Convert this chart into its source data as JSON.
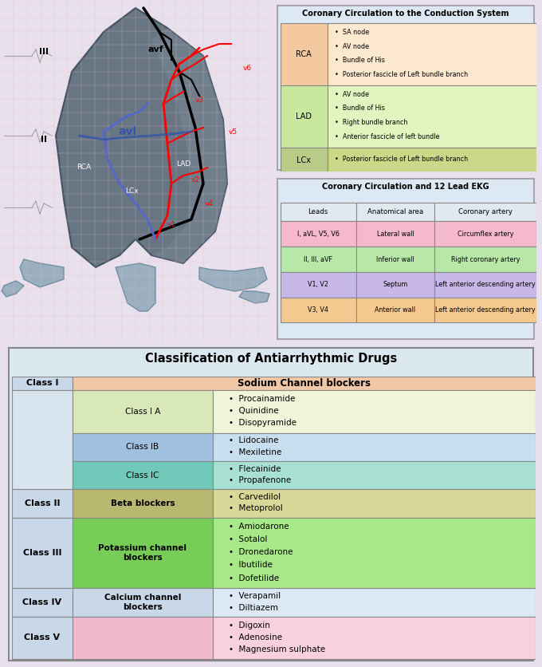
{
  "bg_color": "#f0e8f0",
  "top_bg": "#f5eef5",
  "coronary_conduction_title": "Coronary Circulation to the Conduction System",
  "coronary_conduction_rows": [
    {
      "artery": "RCA",
      "artery_bg": "#f5c9a0",
      "items_bg": "#fde8d0",
      "items": [
        "SA node",
        "AV node",
        "Bundle of His",
        "Posterior fascicle of Left bundle branch"
      ]
    },
    {
      "artery": "LAD",
      "artery_bg": "#c8e8a0",
      "items_bg": "#e0f5c0",
      "items": [
        "AV node",
        "Bundle of His",
        "Right bundle branch",
        "Anterior fascicle of left bundle"
      ]
    },
    {
      "artery": "LCx",
      "artery_bg": "#b8cc88",
      "items_bg": "#ccd888",
      "items": [
        "Posterior fascicle of Left bundle branch"
      ]
    }
  ],
  "ekg_title": "Coronary Circulation and 12 Lead EKG",
  "ekg_headers": [
    "Leads",
    "Anatomical area",
    "Coronary artery"
  ],
  "ekg_header_bg": "#e0e8f0",
  "ekg_rows": [
    {
      "leads": "I, aVL, V5, V6",
      "area": "Lateral wall",
      "artery": "Circumflex artery",
      "bg": "#f5b8cc"
    },
    {
      "leads": "II, III, aVF",
      "area": "Inferior wall",
      "artery": "Right coronary artery",
      "bg": "#b8e8a8"
    },
    {
      "leads": "V1, V2",
      "area": "Septum",
      "artery": "Left anterior descending artery",
      "bg": "#c8b8e8"
    },
    {
      "leads": "V3, V4",
      "area": "Anterior wall",
      "artery": "Left anterior descending artery",
      "bg": "#f5c890"
    }
  ],
  "drug_title": "Classification of Antiarrhythmic Drugs",
  "drug_table_bg": "#dce8f0",
  "drug_rows": [
    {
      "class": "Class I",
      "class_bg": "#c8d8e8",
      "subclass": "Sodium Channel blockers",
      "subclass_bg": "#f0c8a8",
      "drugs": [],
      "drugs_bg": "#f0c8a8",
      "header_row": true
    },
    {
      "class": "",
      "class_bg": "#d8e4ee",
      "subclass": "Class I A",
      "subclass_bg": "#d8e8b8",
      "drugs": [
        "Procainamide",
        "Quinidine",
        "Disopyramide"
      ],
      "drugs_bg": "#eef5d8"
    },
    {
      "class": "",
      "class_bg": "#d8e4ee",
      "subclass": "Class IB",
      "subclass_bg": "#a0c0e0",
      "drugs": [
        "Lidocaine",
        "Mexiletine"
      ],
      "drugs_bg": "#c8dff0"
    },
    {
      "class": "",
      "class_bg": "#d8e4ee",
      "subclass": "Class IC",
      "subclass_bg": "#70c8b8",
      "drugs": [
        "Flecainide",
        "Propafenone"
      ],
      "drugs_bg": "#a8e0d4"
    },
    {
      "class": "Class II",
      "class_bg": "#c8d8e8",
      "subclass": "Beta blockers",
      "subclass_bg": "#b8b870",
      "drugs": [
        "Carvedilol",
        "Metoprolol"
      ],
      "drugs_bg": "#d8d898"
    },
    {
      "class": "Class III",
      "class_bg": "#c8d8e8",
      "subclass": "Potassium channel\nblockers",
      "subclass_bg": "#78cc58",
      "drugs": [
        "Amiodarone",
        "Sotalol",
        "Dronedarone",
        "Ibutilide",
        "Dofetilide"
      ],
      "drugs_bg": "#a8e888"
    },
    {
      "class": "Class IV",
      "class_bg": "#c8d8e8",
      "subclass": "Calcium channel\nblockers",
      "subclass_bg": "#c8d8e8",
      "drugs": [
        "Verapamil",
        "Diltiazem"
      ],
      "drugs_bg": "#dce8f4"
    },
    {
      "class": "Class V",
      "class_bg": "#c8d8e8",
      "subclass": "",
      "subclass_bg": "#f0b8cc",
      "drugs": [
        "Digoxin",
        "Adenosine",
        "Magnesium sulphate"
      ],
      "drugs_bg": "#f8d0e0"
    }
  ]
}
